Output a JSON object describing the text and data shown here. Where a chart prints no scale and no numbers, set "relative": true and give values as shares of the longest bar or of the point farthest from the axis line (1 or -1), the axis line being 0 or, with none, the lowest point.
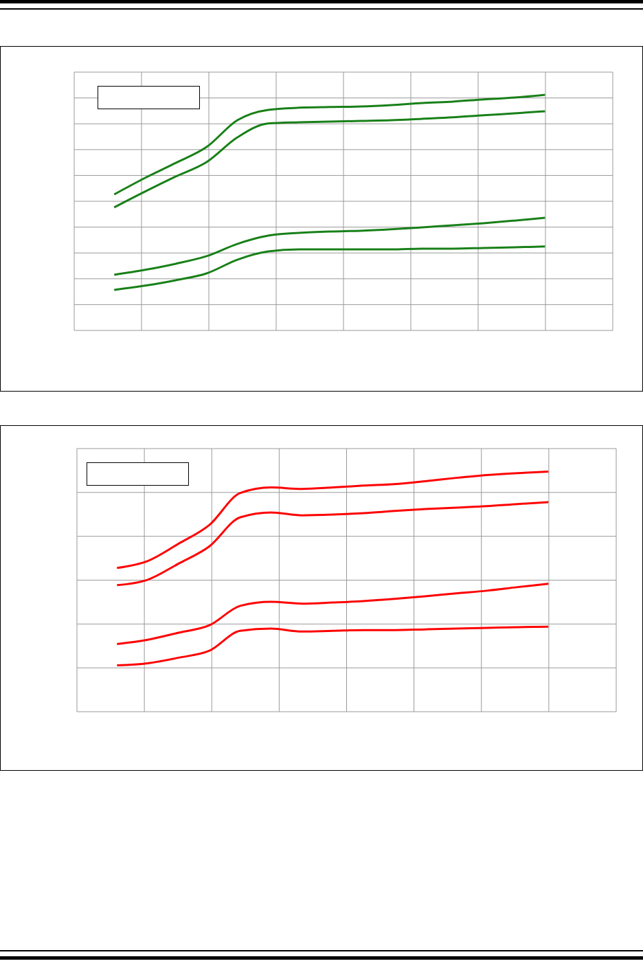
{
  "chart_data": [
    {
      "type": "line",
      "relative": true,
      "grid": true,
      "categories": [
        null,
        null,
        null,
        null,
        null,
        null,
        null,
        null,
        null,
        null,
        null,
        null,
        null,
        null,
        null
      ],
      "series": [
        {
          "color": "#188018",
          "values": [
            0.577,
            0.647,
            0.711,
            0.778,
            0.892,
            0.936,
            0.945,
            0.948,
            0.95,
            0.956,
            0.965,
            0.971,
            0.98,
            0.988,
            1
          ]
        },
        {
          "color": "#188018",
          "values": [
            0.522,
            0.589,
            0.653,
            0.714,
            0.819,
            0.878,
            0.883,
            0.886,
            0.889,
            0.892,
            0.898,
            0.904,
            0.913,
            0.921,
            0.93
          ]
        },
        {
          "color": "#188018",
          "values": [
            0.236,
            0.257,
            0.283,
            0.315,
            0.367,
            0.402,
            0.414,
            0.42,
            0.423,
            0.429,
            0.437,
            0.446,
            0.455,
            0.466,
            0.478
          ]
        },
        {
          "color": "#188018",
          "values": [
            0.172,
            0.19,
            0.213,
            0.242,
            0.3,
            0.335,
            0.344,
            0.344,
            0.344,
            0.344,
            0.347,
            0.347,
            0.35,
            0.353,
            0.356
          ]
        }
      ]
    },
    {
      "type": "line",
      "relative": true,
      "grid": true,
      "categories": [
        null,
        null,
        null,
        null,
        null,
        null,
        null,
        null,
        null,
        null,
        null,
        null,
        null,
        null,
        null
      ],
      "series": [
        {
          "color": "#ff0000",
          "values": [
            0.599,
            0.628,
            0.7,
            0.778,
            0.911,
            0.934,
            0.928,
            0.934,
            0.942,
            0.948,
            0.96,
            0.974,
            0.986,
            0.994,
            1
          ]
        },
        {
          "color": "#ff0000",
          "values": [
            0.527,
            0.55,
            0.617,
            0.689,
            0.81,
            0.83,
            0.818,
            0.821,
            0.827,
            0.836,
            0.844,
            0.85,
            0.856,
            0.865,
            0.873
          ]
        },
        {
          "color": "#ff0000",
          "values": [
            0.282,
            0.3,
            0.329,
            0.36,
            0.441,
            0.458,
            0.45,
            0.455,
            0.461,
            0.47,
            0.481,
            0.493,
            0.504,
            0.519,
            0.533
          ]
        },
        {
          "color": "#ff0000",
          "values": [
            0.193,
            0.202,
            0.225,
            0.254,
            0.337,
            0.346,
            0.334,
            0.337,
            0.34,
            0.34,
            0.343,
            0.346,
            0.349,
            0.352,
            0.354
          ]
        }
      ]
    }
  ]
}
